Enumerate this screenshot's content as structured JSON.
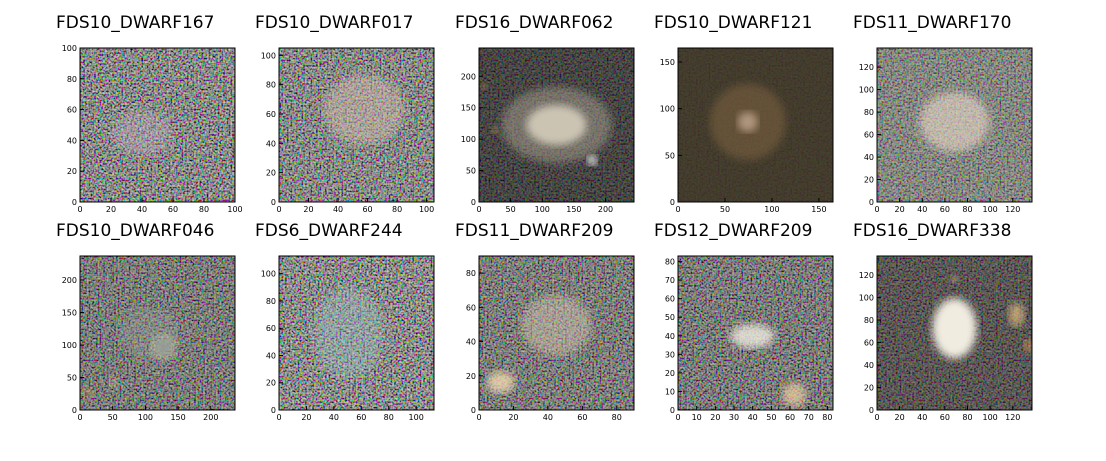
{
  "chart_data": [
    {
      "type": "image",
      "title": "FDS10_DWARF167",
      "xlim": [
        0,
        100
      ],
      "ylim": [
        0,
        100
      ],
      "xticks": [
        0,
        20,
        40,
        60,
        80,
        100
      ],
      "yticks": [
        0,
        20,
        40,
        60,
        80,
        100
      ]
    },
    {
      "type": "image",
      "title": "FDS10_DWARF017",
      "xlim": [
        0,
        105
      ],
      "ylim": [
        0,
        105
      ],
      "xticks": [
        0,
        20,
        40,
        60,
        80,
        100
      ],
      "yticks": [
        0,
        20,
        40,
        60,
        80,
        100
      ]
    },
    {
      "type": "image",
      "title": "FDS16_DWARF062",
      "xlim": [
        0,
        245
      ],
      "ylim": [
        0,
        245
      ],
      "xticks": [
        0,
        50,
        100,
        150,
        200
      ],
      "yticks": [
        0,
        50,
        100,
        150,
        200
      ]
    },
    {
      "type": "image",
      "title": "FDS10_DWARF121",
      "xlim": [
        0,
        165
      ],
      "ylim": [
        0,
        165
      ],
      "xticks": [
        0,
        50,
        100,
        150
      ],
      "yticks": [
        0,
        50,
        100,
        150
      ]
    },
    {
      "type": "image",
      "title": "FDS11_DWARF170",
      "xlim": [
        0,
        137
      ],
      "ylim": [
        0,
        137
      ],
      "xticks": [
        0,
        20,
        40,
        60,
        80,
        100,
        120
      ],
      "yticks": [
        0,
        20,
        40,
        60,
        80,
        100,
        120
      ]
    },
    {
      "type": "image",
      "title": "FDS10_DWARF046",
      "xlim": [
        0,
        237
      ],
      "ylim": [
        0,
        237
      ],
      "xticks": [
        0,
        50,
        100,
        150,
        200
      ],
      "yticks": [
        0,
        50,
        100,
        150,
        200
      ]
    },
    {
      "type": "image",
      "title": "FDS6_DWARF244",
      "xlim": [
        0,
        113
      ],
      "ylim": [
        0,
        113
      ],
      "xticks": [
        0,
        20,
        40,
        60,
        80,
        100
      ],
      "yticks": [
        0,
        20,
        40,
        60,
        80,
        100
      ]
    },
    {
      "type": "image",
      "title": "FDS11_DWARF209",
      "xlim": [
        0,
        90
      ],
      "ylim": [
        0,
        90
      ],
      "xticks": [
        0,
        20,
        40,
        60,
        80
      ],
      "yticks": [
        0,
        20,
        40,
        60,
        80
      ]
    },
    {
      "type": "image",
      "title": "FDS12_DWARF209",
      "xlim": [
        0,
        83
      ],
      "ylim": [
        0,
        83
      ],
      "xticks": [
        0,
        10,
        20,
        30,
        40,
        50,
        60,
        70,
        80
      ],
      "yticks": [
        0,
        10,
        20,
        30,
        40,
        50,
        60,
        70,
        80
      ]
    },
    {
      "type": "image",
      "title": "FDS16_DWARF338",
      "xlim": [
        0,
        137
      ],
      "ylim": [
        0,
        137
      ],
      "xticks": [
        0,
        20,
        40,
        60,
        80,
        100,
        120
      ],
      "yticks": [
        0,
        20,
        40,
        60,
        80,
        100,
        120
      ]
    }
  ]
}
